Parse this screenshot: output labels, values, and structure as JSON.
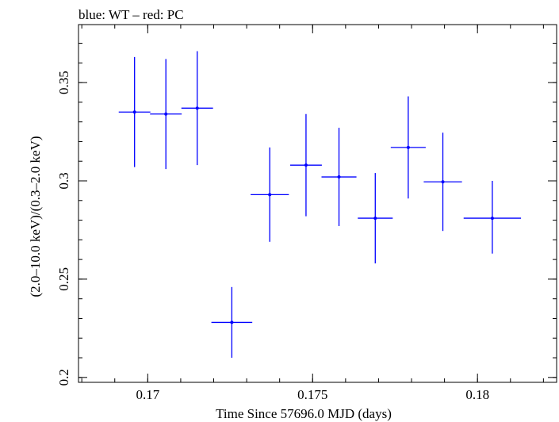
{
  "chart_data": {
    "type": "scatter",
    "title": "blue: WT – red: PC",
    "xlabel": "Time Since 57696.0 MJD (days)",
    "ylabel": "(2.0–10.0 keV)/(0.3–2.0 keV)",
    "xlim": [
      0.1679,
      0.1824
    ],
    "ylim": [
      0.1975,
      0.3795
    ],
    "xticks": [
      0.17,
      0.175,
      0.18
    ],
    "xtick_labels": [
      "0.17",
      "0.175",
      "0.18"
    ],
    "yticks": [
      0.2,
      0.25,
      0.3,
      0.35
    ],
    "ytick_labels": [
      "0.2",
      "0.25",
      "0.3",
      "0.35"
    ],
    "x_minor_step": 0.001,
    "y_minor_step": 0.01,
    "grid": false,
    "series": [
      {
        "color": "#0000ff",
        "points": [
          {
            "x": 0.1696,
            "xerr": 0.00048,
            "y": 0.335,
            "yerr_lo": 0.028,
            "yerr_hi": 0.028
          },
          {
            "x": 0.17055,
            "xerr": 0.00048,
            "y": 0.334,
            "yerr_lo": 0.028,
            "yerr_hi": 0.028
          },
          {
            "x": 0.1715,
            "xerr": 0.00048,
            "y": 0.337,
            "yerr_lo": 0.029,
            "yerr_hi": 0.029
          },
          {
            "x": 0.17255,
            "xerr": 0.00062,
            "y": 0.228,
            "yerr_lo": 0.018,
            "yerr_hi": 0.018
          },
          {
            "x": 0.1737,
            "xerr": 0.00058,
            "y": 0.293,
            "yerr_lo": 0.024,
            "yerr_hi": 0.024
          },
          {
            "x": 0.1748,
            "xerr": 0.00048,
            "y": 0.308,
            "yerr_lo": 0.026,
            "yerr_hi": 0.026
          },
          {
            "x": 0.1758,
            "xerr": 0.00053,
            "y": 0.302,
            "yerr_lo": 0.025,
            "yerr_hi": 0.025
          },
          {
            "x": 0.1769,
            "xerr": 0.00053,
            "y": 0.281,
            "yerr_lo": 0.023,
            "yerr_hi": 0.023
          },
          {
            "x": 0.1779,
            "xerr": 0.00053,
            "y": 0.317,
            "yerr_lo": 0.026,
            "yerr_hi": 0.026
          },
          {
            "x": 0.17895,
            "xerr": 0.00058,
            "y": 0.2995,
            "yerr_lo": 0.025,
            "yerr_hi": 0.025
          },
          {
            "x": 0.18045,
            "xerr": 0.00087,
            "y": 0.281,
            "yerr_lo": 0.018,
            "yerr_hi": 0.019
          }
        ]
      }
    ]
  }
}
